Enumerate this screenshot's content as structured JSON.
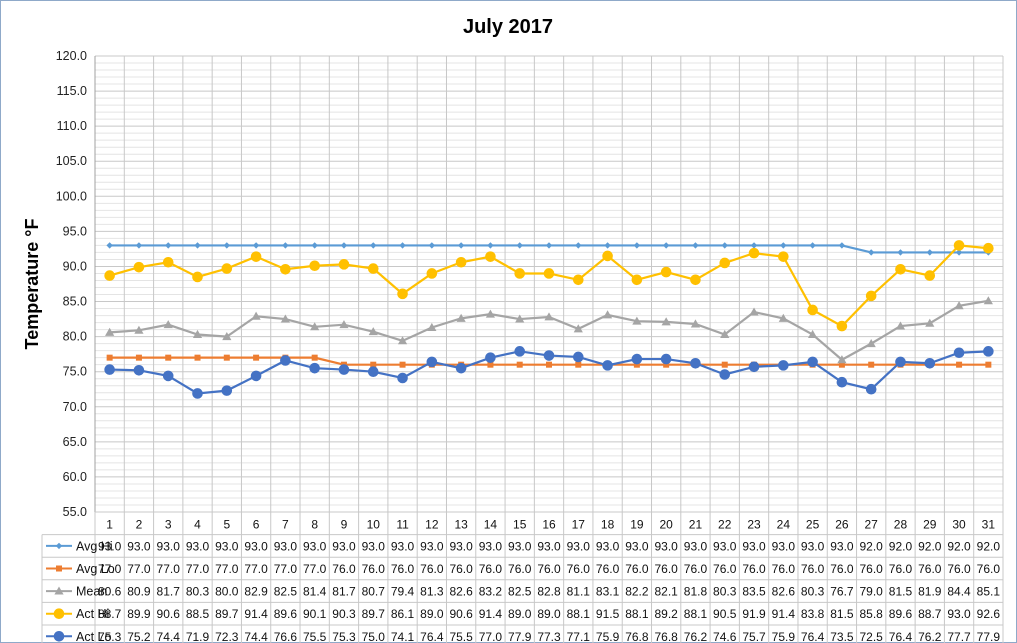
{
  "chart_data": {
    "type": "line",
    "title": "July 2017",
    "ylabel": "Temperature °F",
    "ylim": [
      55,
      120
    ],
    "ystep": 5,
    "grid": true,
    "legend_placement": "data-table",
    "categories": [
      "1",
      "2",
      "3",
      "4",
      "5",
      "6",
      "7",
      "8",
      "9",
      "10",
      "11",
      "12",
      "13",
      "14",
      "15",
      "16",
      "17",
      "18",
      "19",
      "20",
      "21",
      "22",
      "23",
      "24",
      "25",
      "26",
      "27",
      "28",
      "29",
      "30",
      "31"
    ],
    "series": [
      {
        "name": "Avg Hi",
        "color": "#5b9bd5",
        "marker": "diamond",
        "values": [
          93.0,
          93.0,
          93.0,
          93.0,
          93.0,
          93.0,
          93.0,
          93.0,
          93.0,
          93.0,
          93.0,
          93.0,
          93.0,
          93.0,
          93.0,
          93.0,
          93.0,
          93.0,
          93.0,
          93.0,
          93.0,
          93.0,
          93.0,
          93.0,
          93.0,
          93.0,
          92.0,
          92.0,
          92.0,
          92.0,
          92.0
        ]
      },
      {
        "name": "Avg Lo",
        "color": "#ed7d31",
        "marker": "square",
        "values": [
          77.0,
          77.0,
          77.0,
          77.0,
          77.0,
          77.0,
          77.0,
          77.0,
          76.0,
          76.0,
          76.0,
          76.0,
          76.0,
          76.0,
          76.0,
          76.0,
          76.0,
          76.0,
          76.0,
          76.0,
          76.0,
          76.0,
          76.0,
          76.0,
          76.0,
          76.0,
          76.0,
          76.0,
          76.0,
          76.0,
          76.0
        ]
      },
      {
        "name": "Mean",
        "color": "#a5a5a5",
        "marker": "triangle",
        "values": [
          80.6,
          80.9,
          81.7,
          80.3,
          80.0,
          82.9,
          82.5,
          81.4,
          81.7,
          80.7,
          79.4,
          81.3,
          82.6,
          83.2,
          82.5,
          82.8,
          81.1,
          83.1,
          82.2,
          82.1,
          81.8,
          80.3,
          83.5,
          82.6,
          80.3,
          76.7,
          79.0,
          81.5,
          81.9,
          84.4,
          85.1
        ]
      },
      {
        "name": "Act Hi",
        "color": "#ffc000",
        "marker": "circle",
        "values": [
          88.7,
          89.9,
          90.6,
          88.5,
          89.7,
          91.4,
          89.6,
          90.1,
          90.3,
          89.7,
          86.1,
          89.0,
          90.6,
          91.4,
          89.0,
          89.0,
          88.1,
          91.5,
          88.1,
          89.2,
          88.1,
          90.5,
          91.9,
          91.4,
          83.8,
          81.5,
          85.8,
          89.6,
          88.7,
          93.0,
          92.6
        ]
      },
      {
        "name": "Act Lo",
        "color": "#4472c4",
        "marker": "circle",
        "values": [
          75.3,
          75.2,
          74.4,
          71.9,
          72.3,
          74.4,
          76.6,
          75.5,
          75.3,
          75.0,
          74.1,
          76.4,
          75.5,
          77.0,
          77.9,
          77.3,
          77.1,
          75.9,
          76.8,
          76.8,
          76.2,
          74.6,
          75.7,
          75.9,
          76.4,
          73.5,
          72.5,
          76.4,
          76.2,
          77.7,
          77.9
        ]
      }
    ]
  }
}
